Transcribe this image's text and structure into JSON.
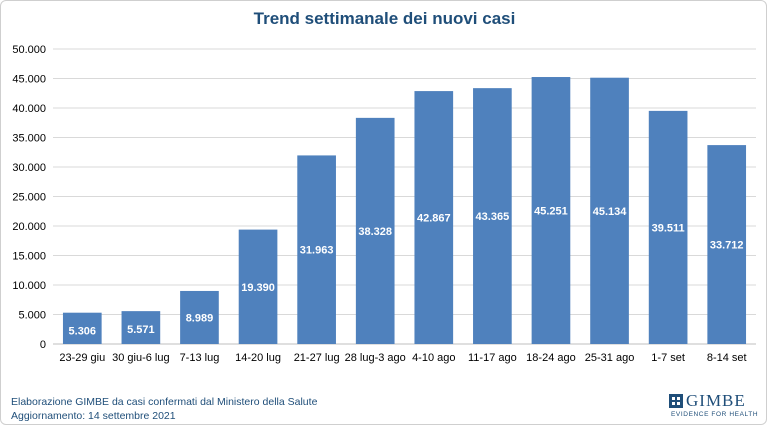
{
  "colors": {
    "bar": "#4f81bd",
    "grid": "#d9d9d9",
    "title": "#1f4e79",
    "footer": "#1f4e79"
  },
  "chart_data": {
    "type": "bar",
    "title": "Trend settimanale dei nuovi casi",
    "categories": [
      "23-29 giu",
      "30 giu-6 lug",
      "7-13 lug",
      "14-20 lug",
      "21-27 lug",
      "28 lug-3 ago",
      "4-10 ago",
      "11-17 ago",
      "18-24 ago",
      "25-31 ago",
      "1-7 set",
      "8-14 set"
    ],
    "values": [
      5306,
      5571,
      8989,
      19390,
      31963,
      38328,
      42867,
      43365,
      45251,
      45134,
      39511,
      33712
    ],
    "data_labels": [
      "5.306",
      "5.571",
      "8.989",
      "19.390",
      "31.963",
      "38.328",
      "42.867",
      "43.365",
      "45.251",
      "45.134",
      "39.511",
      "33.712"
    ],
    "ylim": [
      0,
      50000
    ],
    "yticks": [
      0,
      5000,
      10000,
      15000,
      20000,
      25000,
      30000,
      35000,
      40000,
      45000,
      50000
    ],
    "ytick_labels": [
      "0",
      "5.000",
      "10.000",
      "15.000",
      "20.000",
      "25.000",
      "30.000",
      "35.000",
      "40.000",
      "45.000",
      "50.000"
    ],
    "grid": true,
    "legend": "none",
    "xlabel": "",
    "ylabel": ""
  },
  "footer": {
    "line1": "Elaborazione GIMBE da casi confermati dal Ministero della Salute",
    "line2": "Aggiornamento: 14 settembre 2021"
  },
  "logo": {
    "name": "GIMBE",
    "tagline": "EVIDENCE FOR HEALTH",
    "icon": "gimbe-logo-icon"
  }
}
